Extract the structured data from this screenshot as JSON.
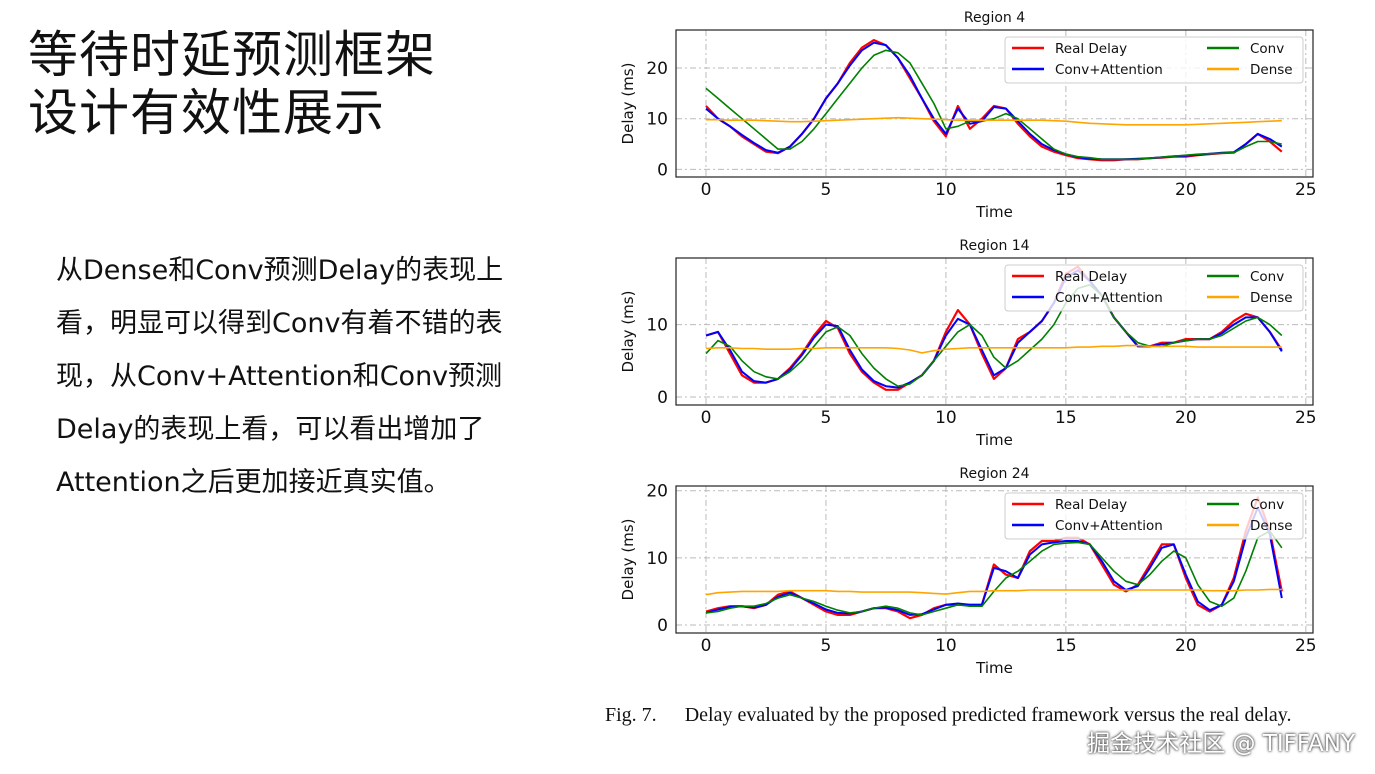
{
  "slide": {
    "title_lines": [
      "等待时延预测框架",
      "设计有效性展示"
    ],
    "body": "从Dense和Conv预测Delay的表现上看，明显可以得到Conv有着不错的表现，从Conv+Attention和Conv预测Delay的表现上看，可以看出增加了Attention之后更加接近真实值。",
    "caption_fig": "Fig. 7.",
    "caption_text": "Delay evaluated by the proposed predicted framework versus the real delay.",
    "watermark": "掘金技术社区 @ TIFFANY"
  },
  "colors": {
    "Real Delay": "#ff0000",
    "Conv+Attention": "#0000ff",
    "Conv": "#008000",
    "Dense": "#ffa500"
  },
  "chart_data": [
    {
      "type": "line",
      "title": "Region 4",
      "xlabel": "Time",
      "ylabel": "Delay (ms)",
      "xlim": [
        -1.25,
        25.3
      ],
      "ylim": [
        -1.5,
        27.5
      ],
      "xticks": [
        0,
        5,
        10,
        15,
        20,
        25
      ],
      "yticks": [
        0,
        10,
        20
      ],
      "grid": true,
      "legend": "top-right",
      "x": [
        0,
        0.5,
        1,
        1.5,
        2,
        2.5,
        3,
        3.5,
        4,
        4.5,
        5,
        5.5,
        6,
        6.5,
        7,
        7.5,
        8,
        8.5,
        9,
        9.5,
        10,
        10.5,
        11,
        11.5,
        12,
        12.5,
        13,
        13.5,
        14,
        14.5,
        15,
        15.5,
        16,
        16.5,
        17,
        17.5,
        18,
        18.5,
        19,
        19.5,
        20,
        20.5,
        21,
        21.5,
        22,
        22.5,
        23,
        23.5,
        24
      ],
      "series": [
        {
          "name": "Real Delay",
          "values": [
            12.5,
            10,
            8.5,
            6.5,
            5,
            3.5,
            3.2,
            4.5,
            7,
            10,
            14,
            17,
            21,
            24,
            25.5,
            24.5,
            22,
            18,
            14,
            9.5,
            6.5,
            12.5,
            8,
            10,
            12.5,
            12,
            9,
            6.5,
            4.5,
            3.5,
            2.8,
            2.2,
            2,
            1.8,
            1.8,
            2,
            2,
            2.2,
            2.3,
            2.5,
            2.5,
            2.8,
            3,
            3.2,
            3.3,
            5,
            7,
            5.5,
            3.5
          ]
        },
        {
          "name": "Conv+Attention",
          "values": [
            12,
            10,
            8.5,
            6.8,
            5.2,
            3.8,
            3.3,
            4.5,
            7,
            10,
            14,
            17,
            20.5,
            23.5,
            25,
            24.5,
            22,
            18.5,
            14,
            10,
            7,
            12,
            9,
            9.5,
            12.3,
            12,
            9.5,
            7,
            5,
            3.8,
            3,
            2.4,
            2.1,
            2,
            2,
            2,
            2.1,
            2.2,
            2.4,
            2.6,
            2.7,
            2.9,
            3.1,
            3.3,
            3.4,
            5,
            7,
            6,
            4.5
          ]
        },
        {
          "name": "Conv",
          "values": [
            16,
            14,
            12,
            10,
            8,
            6,
            4,
            4,
            5.5,
            8,
            11,
            14,
            17,
            20,
            22.5,
            23.5,
            23,
            21,
            17,
            13,
            8,
            8.5,
            9.5,
            9.5,
            10,
            11,
            10,
            8,
            6,
            4,
            3,
            2.5,
            2.3,
            2,
            2,
            2,
            2,
            2.2,
            2.4,
            2.6,
            2.8,
            3,
            3.1,
            3.2,
            3.3,
            4.5,
            5.5,
            5.5,
            5
          ]
        },
        {
          "name": "Dense",
          "values": [
            9.8,
            9.8,
            9.7,
            9.7,
            9.7,
            9.6,
            9.5,
            9.4,
            9.4,
            9.5,
            9.6,
            9.7,
            9.8,
            9.9,
            10,
            10.1,
            10.2,
            10.1,
            10,
            9.9,
            9.8,
            9.7,
            9.7,
            9.7,
            9.7,
            9.7,
            9.7,
            9.7,
            9.7,
            9.6,
            9.5,
            9.3,
            9.1,
            9,
            8.9,
            8.8,
            8.8,
            8.8,
            8.8,
            8.8,
            8.8,
            8.9,
            9,
            9.1,
            9.2,
            9.3,
            9.4,
            9.5,
            9.6
          ]
        }
      ]
    },
    {
      "type": "line",
      "title": "Region 14",
      "xlabel": "Time",
      "ylabel": "Delay (ms)",
      "xlim": [
        -1.25,
        25.3
      ],
      "ylim": [
        -1.1,
        19.2
      ],
      "xticks": [
        0,
        5,
        10,
        15,
        20,
        25
      ],
      "yticks": [
        0,
        10
      ],
      "grid": true,
      "legend": "top-right",
      "x": [
        0,
        0.5,
        1,
        1.5,
        2,
        2.5,
        3,
        3.5,
        4,
        4.5,
        5,
        5.5,
        6,
        6.5,
        7,
        7.5,
        8,
        8.5,
        9,
        9.5,
        10,
        10.5,
        11,
        11.5,
        12,
        12.5,
        13,
        13.5,
        14,
        14.5,
        15,
        15.5,
        16,
        16.5,
        17,
        17.5,
        18,
        18.5,
        19,
        19.5,
        20,
        20.5,
        21,
        21.5,
        22,
        22.5,
        23,
        23.5,
        24
      ],
      "series": [
        {
          "name": "Real Delay",
          "values": [
            8.5,
            9,
            6,
            3,
            2,
            2,
            2.5,
            4,
            6,
            8.5,
            10.5,
            9.5,
            6,
            3.5,
            2,
            1,
            1,
            2,
            3,
            5,
            9,
            12,
            10,
            6,
            2.5,
            4,
            8,
            9,
            10.5,
            13,
            17,
            18,
            16,
            14,
            11,
            9,
            7,
            7,
            7.5,
            7.5,
            8,
            8,
            8,
            9,
            10.5,
            11.5,
            11,
            9,
            6.5
          ]
        },
        {
          "name": "Conv+Attention",
          "values": [
            8.5,
            9,
            6.5,
            3.5,
            2.2,
            2,
            2.5,
            3.8,
            5.8,
            8.2,
            10,
            9.8,
            6.5,
            3.8,
            2.2,
            1.5,
            1.3,
            2,
            3,
            5,
            8.5,
            10.8,
            10,
            6.5,
            3,
            4,
            7.5,
            9,
            10.5,
            13,
            16.5,
            17.5,
            16,
            14,
            11,
            9,
            7,
            7,
            7.3,
            7.5,
            7.8,
            8,
            8,
            8.8,
            10,
            11,
            11,
            9,
            6.3
          ]
        },
        {
          "name": "Conv",
          "values": [
            6,
            7.8,
            7,
            5,
            3.5,
            2.8,
            2.5,
            3.5,
            5,
            7,
            9,
            9.7,
            8.5,
            6,
            4,
            2.5,
            1.5,
            1.8,
            3,
            5,
            7,
            9,
            10,
            8.5,
            5.5,
            4,
            5,
            6.5,
            8,
            10,
            13,
            15,
            15.5,
            14,
            11,
            9,
            7.5,
            7,
            7,
            7.5,
            7.8,
            8,
            8,
            8.5,
            9.5,
            10.5,
            11,
            10,
            8.5
          ]
        },
        {
          "name": "Dense",
          "values": [
            6.7,
            6.8,
            6.8,
            6.7,
            6.7,
            6.6,
            6.6,
            6.6,
            6.7,
            6.7,
            6.8,
            6.8,
            6.8,
            6.8,
            6.8,
            6.8,
            6.7,
            6.5,
            6.1,
            6.4,
            6.6,
            6.7,
            6.8,
            6.8,
            6.8,
            6.8,
            6.8,
            6.8,
            6.8,
            6.8,
            6.8,
            6.9,
            6.9,
            7,
            7,
            7.1,
            7.1,
            7,
            7,
            7,
            7,
            6.9,
            6.9,
            6.9,
            6.9,
            6.9,
            6.9,
            6.9,
            6.9
          ]
        }
      ]
    },
    {
      "type": "line",
      "title": "Region 24",
      "xlabel": "Time",
      "ylabel": "Delay (ms)",
      "xlim": [
        -1.25,
        25.3
      ],
      "ylim": [
        -1.2,
        20.7
      ],
      "xticks": [
        0,
        5,
        10,
        15,
        20,
        25
      ],
      "yticks": [
        0,
        10,
        20
      ],
      "grid": true,
      "legend": "top-right",
      "x": [
        0,
        0.5,
        1,
        1.5,
        2,
        2.5,
        3,
        3.5,
        4,
        4.5,
        5,
        5.5,
        6,
        6.5,
        7,
        7.5,
        8,
        8.5,
        9,
        9.5,
        10,
        10.5,
        11,
        11.5,
        12,
        12.5,
        13,
        13.5,
        14,
        14.5,
        15,
        15.5,
        16,
        16.5,
        17,
        17.5,
        18,
        18.5,
        19,
        19.5,
        20,
        20.5,
        21,
        21.5,
        22,
        22.5,
        23,
        23.5,
        24
      ],
      "series": [
        {
          "name": "Real Delay",
          "values": [
            2,
            2.5,
            2.8,
            2.8,
            2.5,
            3,
            4.5,
            5,
            4,
            3,
            2,
            1.5,
            1.5,
            2,
            2.5,
            2.5,
            2,
            1,
            1.5,
            2.5,
            3,
            3,
            3,
            3,
            9,
            7.5,
            7,
            11,
            12.5,
            12.5,
            13,
            13,
            12,
            9,
            6,
            5,
            6,
            9,
            12,
            12,
            7,
            3,
            2,
            3,
            7,
            14,
            19,
            14,
            5
          ]
        },
        {
          "name": "Conv+Attention",
          "values": [
            1.8,
            2.3,
            2.7,
            2.8,
            2.6,
            3,
            4.2,
            4.8,
            4,
            3.2,
            2.3,
            1.8,
            1.7,
            2,
            2.5,
            2.6,
            2.2,
            1.5,
            1.6,
            2.3,
            3,
            3.2,
            3,
            3,
            8.5,
            8,
            7,
            10.5,
            12,
            12.3,
            12.5,
            12.5,
            12,
            9.5,
            6.5,
            5.2,
            5.8,
            8.5,
            11.5,
            12,
            7.5,
            3.5,
            2.2,
            3,
            6.5,
            13,
            17.5,
            13.5,
            4
          ]
        },
        {
          "name": "Conv",
          "values": [
            1.8,
            2,
            2.5,
            2.8,
            2.8,
            3.2,
            4,
            4.5,
            4,
            3.5,
            2.8,
            2.2,
            1.8,
            2,
            2.5,
            2.8,
            2.5,
            1.8,
            1.5,
            2,
            2.5,
            3,
            2.8,
            2.8,
            5,
            7,
            8,
            9.5,
            11,
            12,
            12.2,
            12.3,
            12,
            10,
            8,
            6.5,
            6,
            7.5,
            9.5,
            11,
            10,
            6,
            3.5,
            2.8,
            4,
            8,
            13,
            14,
            11.5
          ]
        },
        {
          "name": "Dense",
          "values": [
            4.5,
            4.8,
            4.9,
            5,
            5,
            5,
            5,
            5.1,
            5.1,
            5.1,
            5.1,
            5,
            5,
            4.9,
            4.9,
            4.9,
            4.9,
            4.9,
            4.8,
            4.7,
            4.6,
            4.8,
            5,
            5,
            5.1,
            5.1,
            5.1,
            5.2,
            5.2,
            5.2,
            5.2,
            5.2,
            5.2,
            5.2,
            5.2,
            5.2,
            5.2,
            5.2,
            5.2,
            5.2,
            5.2,
            5.2,
            5.1,
            5.1,
            5.1,
            5.2,
            5.2,
            5.3,
            5.3
          ]
        }
      ]
    }
  ]
}
